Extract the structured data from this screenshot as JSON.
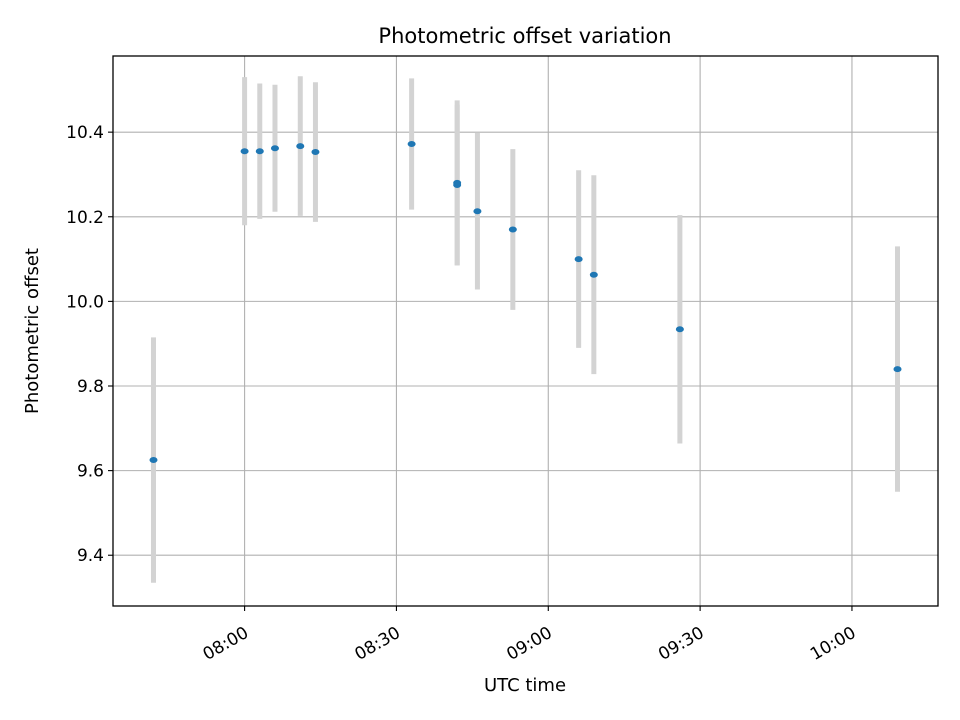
{
  "chart_data": {
    "type": "scatter",
    "title": "Photometric offset variation",
    "xlabel": "UTC time",
    "ylabel": "Photometric offset",
    "x_ticks": [
      "08:00",
      "08:30",
      "09:00",
      "09:30",
      "10:00"
    ],
    "y_ticks": [
      "9.4",
      "9.6",
      "9.8",
      "10.0",
      "10.2",
      "10.4"
    ],
    "xlim": [
      "07:34",
      "10:17"
    ],
    "ylim": [
      9.28,
      10.58
    ],
    "grid": true,
    "point_color": "#1f77b4",
    "errorbar_color": "#d3d3d3",
    "series": [
      {
        "points": [
          {
            "x": "07:42",
            "y": 9.625,
            "err": 0.29
          },
          {
            "x": "08:00",
            "y": 10.355,
            "err": 0.175
          },
          {
            "x": "08:03",
            "y": 10.355,
            "err": 0.16
          },
          {
            "x": "08:06",
            "y": 10.362,
            "err": 0.15
          },
          {
            "x": "08:11",
            "y": 10.367,
            "err": 0.165
          },
          {
            "x": "08:14",
            "y": 10.353,
            "err": 0.165
          },
          {
            "x": "08:33",
            "y": 10.372,
            "err": 0.155
          },
          {
            "x": "08:42",
            "y": 10.275,
            "err": 0.19
          },
          {
            "x": "08:42",
            "y": 10.28,
            "err": 0.195
          },
          {
            "x": "08:46",
            "y": 10.213,
            "err": 0.185
          },
          {
            "x": "08:53",
            "y": 10.17,
            "err": 0.19
          },
          {
            "x": "09:06",
            "y": 10.1,
            "err": 0.21
          },
          {
            "x": "09:09",
            "y": 10.063,
            "err": 0.235
          },
          {
            "x": "09:26",
            "y": 9.934,
            "err": 0.27
          },
          {
            "x": "10:09",
            "y": 9.84,
            "err": 0.29
          }
        ]
      }
    ]
  }
}
